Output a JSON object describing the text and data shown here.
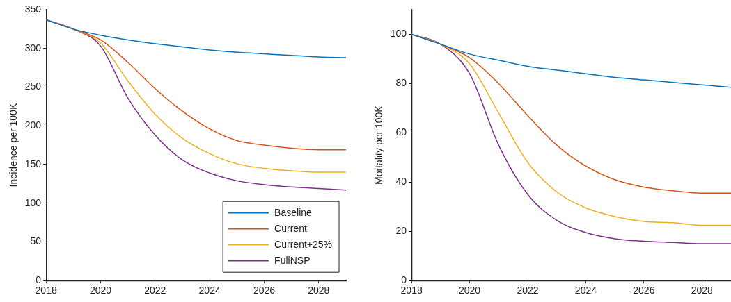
{
  "chart_data": [
    {
      "type": "line",
      "ylabel": "Incidence per 100K",
      "x": [
        2018,
        2019,
        2020,
        2021,
        2022,
        2023,
        2024,
        2025,
        2026,
        2027,
        2028,
        2029
      ],
      "xlim": [
        2018,
        2029
      ],
      "xticks": [
        2018,
        2020,
        2022,
        2024,
        2026,
        2028
      ],
      "ylim": [
        0,
        350
      ],
      "yticks": [
        0,
        50,
        100,
        150,
        200,
        250,
        300,
        350
      ],
      "grid": false,
      "legend": "bottom right",
      "series": [
        {
          "name": "Baseline",
          "color": "#0072bd",
          "values": [
            337,
            325,
            317,
            311,
            306,
            302,
            298,
            295,
            293,
            291,
            289,
            288
          ]
        },
        {
          "name": "Current",
          "color": "#d95319",
          "values": [
            337,
            325,
            311,
            282,
            248,
            219,
            196,
            181,
            175,
            171,
            169,
            169
          ]
        },
        {
          "name": "Current+25%",
          "color": "#edb120",
          "values": [
            337,
            325,
            307,
            258,
            215,
            184,
            164,
            151,
            145,
            142,
            140,
            140
          ]
        },
        {
          "name": "FullNSP",
          "color": "#7e2f8e",
          "values": [
            337,
            325,
            303,
            236,
            188,
            156,
            139,
            129,
            124,
            121,
            119,
            117
          ]
        }
      ]
    },
    {
      "type": "line",
      "ylabel": "Mortality per 100K",
      "x": [
        2018,
        2019,
        2020,
        2021,
        2022,
        2023,
        2024,
        2025,
        2026,
        2027,
        2028,
        2029
      ],
      "xlim": [
        2018,
        2029
      ],
      "xticks": [
        2018,
        2020,
        2022,
        2024,
        2026,
        2028
      ],
      "ylim": [
        0,
        110
      ],
      "yticks": [
        0,
        20,
        40,
        60,
        80,
        100
      ],
      "grid": false,
      "legend": false,
      "series": [
        {
          "color": "#0072bd",
          "values": [
            100,
            96,
            92,
            89.5,
            87,
            85.5,
            84,
            82.5,
            81.5,
            80.5,
            79.5,
            78.5
          ]
        },
        {
          "color": "#d95319",
          "values": [
            100,
            96,
            90.5,
            80,
            67,
            55,
            46.5,
            41,
            38,
            36.5,
            35.5,
            35.5
          ]
        },
        {
          "color": "#edb120",
          "values": [
            100,
            96,
            88,
            68,
            48,
            36,
            29.5,
            26,
            24,
            23.5,
            22.5,
            22.5
          ]
        },
        {
          "color": "#7e2f8e",
          "values": [
            100,
            96,
            84,
            55,
            35,
            24.5,
            19.5,
            17,
            16,
            15.5,
            15,
            15
          ]
        }
      ]
    }
  ]
}
